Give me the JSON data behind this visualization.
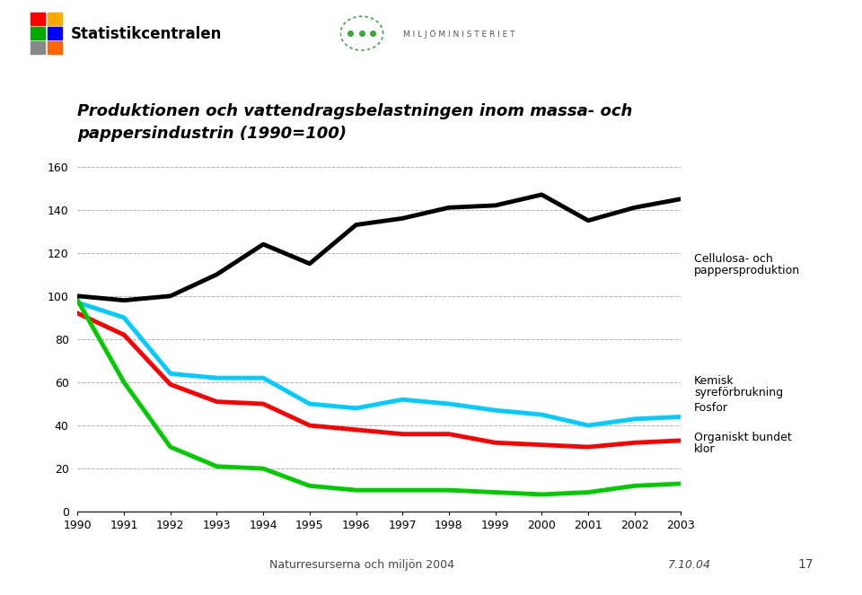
{
  "title_line1": "Produktionen och vattendragsbelastningen inom massa- och",
  "title_line2": "pappersindustrin (1990=100)",
  "years": [
    1990,
    1991,
    1992,
    1993,
    1994,
    1995,
    1996,
    1997,
    1998,
    1999,
    2000,
    2001,
    2002,
    2003
  ],
  "cellulosa": [
    100,
    98,
    100,
    110,
    124,
    115,
    133,
    136,
    141,
    142,
    147,
    135,
    141,
    145
  ],
  "kemisk": [
    97,
    90,
    64,
    62,
    62,
    50,
    48,
    52,
    50,
    47,
    45,
    40,
    43,
    44
  ],
  "fosfor": [
    92,
    82,
    59,
    51,
    50,
    40,
    38,
    36,
    36,
    32,
    31,
    30,
    32,
    33
  ],
  "organiskt": [
    98,
    60,
    30,
    21,
    20,
    12,
    10,
    10,
    10,
    9,
    8,
    9,
    12,
    13
  ],
  "color_cellulosa": "#000000",
  "color_kemisk": "#00ccff",
  "color_fosfor": "#ff0000",
  "color_organiskt": "#00cc00",
  "ylim": [
    0,
    160
  ],
  "yticks": [
    0,
    20,
    40,
    60,
    80,
    100,
    120,
    140,
    160
  ],
  "label_cellulosa_1": "Cellulosa- och",
  "label_cellulosa_2": "pappersproduktion",
  "label_kemisk_1": "Kemisk",
  "label_kemisk_2": "syreförbrukning",
  "label_fosfor": "Fosfor",
  "label_organiskt_1": "Organiskt bundet",
  "label_organiskt_2": "klor",
  "footer_left": "Naturresurserna och miljön 2004",
  "footer_right1": "7.10.04",
  "footer_right2": "17",
  "header_title": "Statistikcentralen",
  "header_ministry": "M I L J Ö M I N I S T E R I E T",
  "background_color": "#ffffff",
  "linewidth": 3.5,
  "logo_colors": [
    "#ff0000",
    "#ffaa00",
    "#00aa00",
    "#0000ff",
    "#888888",
    "#ff6600"
  ]
}
